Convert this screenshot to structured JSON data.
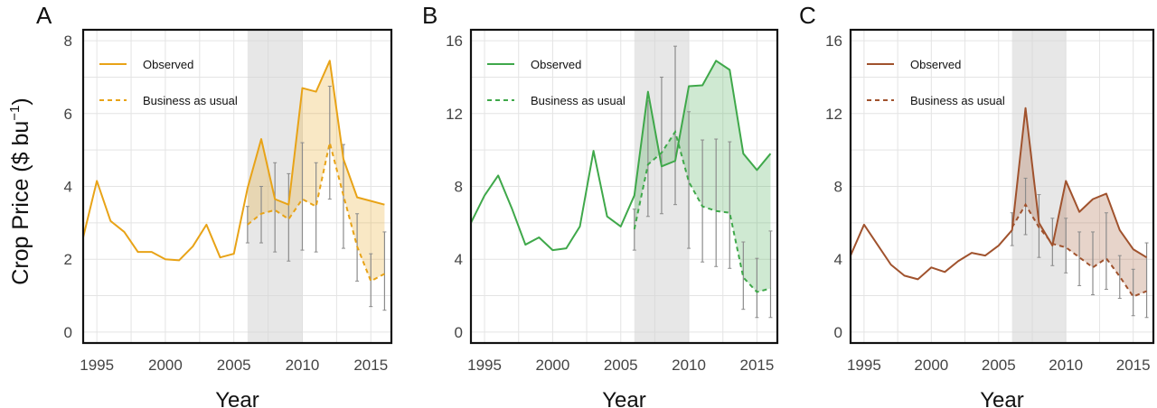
{
  "figure": {
    "y_axis_label": "Crop Price ($ bu",
    "y_axis_unit_exponent": "−1",
    "y_axis_label_close": ")"
  },
  "chart_data": [
    {
      "type": "line",
      "panel": "A",
      "title": "",
      "xlabel": "Year",
      "ylabel": "Crop Price ($ bu⁻¹)",
      "xlim": [
        1994,
        2016.5
      ],
      "ylim": [
        -0.3,
        8.3
      ],
      "xticks": [
        1995,
        2000,
        2005,
        2010,
        2015
      ],
      "yticks": [
        0,
        2,
        4,
        6,
        8
      ],
      "grid": true,
      "color": "#E8A317",
      "shaded_span": [
        2006,
        2010
      ],
      "legend": {
        "position": "top-left",
        "entries": [
          "Observed",
          "Business as usual"
        ]
      },
      "series": [
        {
          "name": "Observed",
          "style": "solid",
          "x": [
            1994,
            1995,
            1996,
            1997,
            1998,
            1999,
            2000,
            2001,
            2002,
            2003,
            2004,
            2005,
            2006,
            2007,
            2008,
            2009,
            2010,
            2011,
            2012,
            2013,
            2014,
            2015,
            2016
          ],
          "values": [
            2.6,
            4.15,
            3.05,
            2.75,
            2.2,
            2.2,
            2.0,
            1.97,
            2.35,
            2.95,
            2.05,
            2.15,
            3.95,
            5.3,
            3.65,
            3.5,
            6.7,
            6.6,
            7.45,
            4.75,
            3.7,
            3.6,
            3.5
          ]
        },
        {
          "name": "Business as usual",
          "style": "dashed",
          "x": [
            2006,
            2007,
            2008,
            2009,
            2010,
            2011,
            2012,
            2013,
            2014,
            2015,
            2016
          ],
          "values": [
            2.95,
            3.25,
            3.35,
            3.1,
            3.65,
            3.45,
            5.2,
            3.75,
            2.35,
            1.4,
            1.6
          ],
          "error_low": [
            2.45,
            2.45,
            2.2,
            1.95,
            2.25,
            2.2,
            3.65,
            2.3,
            1.4,
            0.7,
            0.6
          ],
          "error_high": [
            3.45,
            4.0,
            4.65,
            4.35,
            5.2,
            4.65,
            6.75,
            5.15,
            3.25,
            2.15,
            2.75
          ]
        }
      ]
    },
    {
      "type": "line",
      "panel": "B",
      "title": "",
      "xlabel": "Year",
      "ylabel": "",
      "xlim": [
        1994,
        2016.5
      ],
      "ylim": [
        -0.6,
        16.6
      ],
      "xticks": [
        1995,
        2000,
        2005,
        2010,
        2015
      ],
      "yticks": [
        0,
        4,
        8,
        12,
        16
      ],
      "grid": true,
      "color": "#3FA84A",
      "shaded_span": [
        2006,
        2010
      ],
      "legend": {
        "position": "top-left",
        "entries": [
          "Observed",
          "Business as usual"
        ]
      },
      "series": [
        {
          "name": "Observed",
          "style": "solid",
          "x": [
            1994,
            1995,
            1996,
            1997,
            1998,
            1999,
            2000,
            2001,
            2002,
            2003,
            2004,
            2005,
            2006,
            2007,
            2008,
            2009,
            2010,
            2011,
            2012,
            2013,
            2014,
            2015,
            2016
          ],
          "values": [
            6.0,
            7.5,
            8.6,
            6.8,
            4.8,
            5.2,
            4.5,
            4.6,
            5.8,
            9.95,
            6.35,
            5.8,
            7.5,
            13.2,
            9.1,
            9.4,
            13.5,
            13.55,
            14.9,
            14.4,
            9.8,
            8.9,
            9.8
          ],
          "fill_end": 2016
        },
        {
          "name": "Business as usual",
          "style": "dashed",
          "x": [
            2006,
            2007,
            2008,
            2009,
            2010,
            2011,
            2012,
            2013,
            2014,
            2015,
            2016
          ],
          "values": [
            5.65,
            9.2,
            9.85,
            11.0,
            8.25,
            6.9,
            6.65,
            6.55,
            3.0,
            2.2,
            2.4
          ],
          "error_low": [
            4.5,
            6.35,
            6.5,
            7.0,
            4.6,
            3.85,
            3.6,
            3.5,
            1.25,
            0.8,
            0.8
          ],
          "error_high": [
            6.75,
            12.7,
            14.0,
            15.7,
            12.1,
            10.55,
            10.6,
            10.45,
            4.95,
            4.05,
            5.55
          ]
        }
      ]
    },
    {
      "type": "line",
      "panel": "C",
      "title": "",
      "xlabel": "Year",
      "ylabel": "",
      "xlim": [
        1994,
        2016.5
      ],
      "ylim": [
        -0.6,
        16.6
      ],
      "xticks": [
        1995,
        2000,
        2005,
        2010,
        2015
      ],
      "yticks": [
        0,
        4,
        8,
        12,
        16
      ],
      "grid": true,
      "color": "#A0522D",
      "shaded_span": [
        2006,
        2010
      ],
      "legend": {
        "position": "top-left",
        "entries": [
          "Observed",
          "Business as usual"
        ]
      },
      "series": [
        {
          "name": "Observed",
          "style": "solid",
          "x": [
            1994,
            1995,
            1996,
            1997,
            1998,
            1999,
            2000,
            2001,
            2002,
            2003,
            2004,
            2005,
            2006,
            2007,
            2008,
            2009,
            2010,
            2011,
            2012,
            2013,
            2014,
            2015,
            2016
          ],
          "values": [
            4.2,
            5.9,
            4.8,
            3.7,
            3.1,
            2.9,
            3.55,
            3.3,
            3.9,
            4.35,
            4.2,
            4.75,
            5.6,
            12.3,
            6.0,
            4.75,
            8.3,
            6.6,
            7.3,
            7.6,
            5.6,
            4.55,
            4.1
          ]
        },
        {
          "name": "Business as usual",
          "style": "dashed",
          "x": [
            2006,
            2007,
            2008,
            2009,
            2010,
            2011,
            2012,
            2013,
            2014,
            2015,
            2016
          ],
          "values": [
            5.75,
            7.0,
            5.75,
            4.85,
            4.65,
            4.1,
            3.55,
            4.05,
            3.05,
            1.95,
            2.25
          ],
          "error_low": [
            4.75,
            5.35,
            4.1,
            3.65,
            3.25,
            2.55,
            2.05,
            2.35,
            1.85,
            0.9,
            0.8
          ],
          "error_high": [
            6.55,
            8.45,
            7.55,
            6.25,
            6.25,
            5.5,
            5.5,
            6.55,
            4.2,
            3.45,
            4.9
          ]
        }
      ]
    }
  ]
}
